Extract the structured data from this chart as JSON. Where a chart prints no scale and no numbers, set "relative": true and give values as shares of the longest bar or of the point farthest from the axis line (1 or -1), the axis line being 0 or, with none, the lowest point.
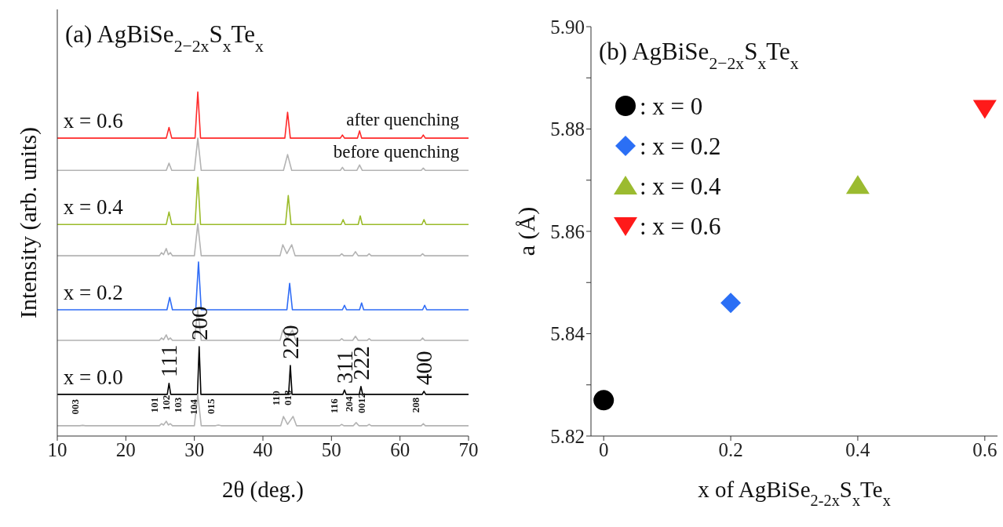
{
  "chart_data": [
    {
      "type": "line",
      "title": "(a) AgBiSe$_{2−2x}$S$_{x}$Te$_{x}$",
      "xlabel": "2θ (deg.)",
      "ylabel": "Intensity (arb. units)",
      "relative": true,
      "xlim": [
        10,
        70
      ],
      "xticks": [
        10,
        20,
        30,
        40,
        50,
        60,
        70
      ],
      "series": [
        {
          "name": "x = 0.6",
          "color": "#ff2a2a",
          "x": [
            10,
            25.9,
            26.3,
            26.7,
            30.1,
            30.5,
            30.9,
            43.2,
            43.6,
            44.0,
            51.3,
            51.6,
            51.9,
            53.8,
            54.1,
            54.4,
            63.1,
            63.4,
            63.7,
            70
          ],
          "values": [
            0.866,
            0.866,
            0.897,
            0.866,
            0.866,
            1,
            0.866,
            0.866,
            0.941,
            0.866,
            0.866,
            0.875,
            0.866,
            0.866,
            0.887,
            0.866,
            0.866,
            0.875,
            0.866,
            0.866
          ]
        },
        {
          "color": "#b3b3b3",
          "x": [
            10,
            25.9,
            26.3,
            26.7,
            30.0,
            30.5,
            31.0,
            43.0,
            43.6,
            44.2,
            51.3,
            51.6,
            51.9,
            53.7,
            54.1,
            54.5,
            63.1,
            63.4,
            63.7,
            70
          ],
          "values": [
            0.772,
            0.772,
            0.793,
            0.772,
            0.772,
            0.866,
            0.772,
            0.772,
            0.818,
            0.772,
            0.772,
            0.781,
            0.772,
            0.772,
            0.788,
            0.772,
            0.772,
            0.779,
            0.772,
            0.772
          ]
        },
        {
          "name": "x = 0.4",
          "color": "#9bbb2a",
          "x": [
            10,
            25.9,
            26.3,
            26.7,
            30.1,
            30.5,
            30.9,
            43.3,
            43.7,
            44.1,
            51.4,
            51.7,
            52.0,
            53.9,
            54.2,
            54.5,
            63.2,
            63.5,
            63.8,
            70
          ],
          "values": [
            0.615,
            0.615,
            0.651,
            0.615,
            0.615,
            0.752,
            0.615,
            0.615,
            0.699,
            0.615,
            0.615,
            0.629,
            0.615,
            0.615,
            0.64,
            0.615,
            0.615,
            0.629,
            0.615,
            0.615
          ]
        },
        {
          "color": "#b3b3b3",
          "x": [
            10,
            24.9,
            25.2,
            25.5,
            25.9,
            26.2,
            26.5,
            26.8,
            30.0,
            30.5,
            31.0,
            42.5,
            42.9,
            43.5,
            44.2,
            44.7,
            51.2,
            51.5,
            51.8,
            53.1,
            53.5,
            53.9,
            55.2,
            55.5,
            55.8,
            63.0,
            63.3,
            63.6,
            70
          ],
          "values": [
            0.524,
            0.524,
            0.533,
            0.527,
            0.545,
            0.527,
            0.533,
            0.524,
            0.524,
            0.617,
            0.524,
            0.524,
            0.556,
            0.53,
            0.556,
            0.524,
            0.524,
            0.53,
            0.524,
            0.524,
            0.536,
            0.524,
            0.524,
            0.53,
            0.524,
            0.524,
            0.53,
            0.524,
            0.524
          ]
        },
        {
          "name": "x = 0.2",
          "color": "#2f6cf6",
          "x": [
            10,
            26.0,
            26.4,
            26.8,
            30.2,
            30.6,
            31.0,
            43.5,
            43.9,
            44.3,
            51.6,
            51.9,
            52.2,
            54.1,
            54.4,
            54.7,
            63.3,
            63.6,
            63.9,
            70
          ],
          "values": [
            0.367,
            0.367,
            0.403,
            0.367,
            0.367,
            0.506,
            0.367,
            0.367,
            0.444,
            0.367,
            0.367,
            0.38,
            0.367,
            0.367,
            0.387,
            0.367,
            0.367,
            0.38,
            0.367,
            0.367
          ]
        },
        {
          "color": "#b3b3b3",
          "x": [
            10,
            24.9,
            25.2,
            25.5,
            25.9,
            26.2,
            26.5,
            26.8,
            30.0,
            30.5,
            31.0,
            42.5,
            42.9,
            43.5,
            44.3,
            44.8,
            51.2,
            51.5,
            51.8,
            53.1,
            53.5,
            53.9,
            55.2,
            55.5,
            55.8,
            63.0,
            63.3,
            63.6,
            70
          ],
          "values": [
            0.278,
            0.278,
            0.285,
            0.28,
            0.294,
            0.28,
            0.285,
            0.278,
            0.278,
            0.367,
            0.278,
            0.278,
            0.308,
            0.282,
            0.308,
            0.278,
            0.278,
            0.283,
            0.278,
            0.278,
            0.29,
            0.278,
            0.278,
            0.283,
            0.278,
            0.278,
            0.285,
            0.278,
            0.278
          ]
        },
        {
          "name": "x = 0.0",
          "color": "#000000",
          "x": [
            10,
            26.05,
            26.3,
            26.55,
            30.45,
            30.7,
            30.95,
            43.75,
            44.0,
            44.25,
            51.65,
            51.9,
            52.15,
            54.05,
            54.3,
            54.55,
            63.25,
            63.5,
            63.75,
            70
          ],
          "values": [
            0.121,
            0.121,
            0.153,
            0.121,
            0.121,
            0.26,
            0.121,
            0.121,
            0.205,
            0.121,
            0.121,
            0.134,
            0.121,
            0.121,
            0.144,
            0.121,
            0.121,
            0.13,
            0.121,
            0.121
          ]
        },
        {
          "color": "#b3b3b3",
          "x": [
            10,
            13.3,
            13.7,
            14.1,
            24.9,
            25.2,
            25.5,
            25.9,
            26.2,
            26.5,
            26.8,
            30.0,
            30.5,
            31.0,
            33.1,
            33.5,
            33.9,
            42.6,
            43.0,
            43.6,
            44.4,
            44.9,
            51.2,
            51.5,
            51.8,
            53.2,
            53.6,
            54.0,
            55.2,
            55.5,
            55.8,
            63.1,
            63.4,
            63.7,
            70
          ],
          "values": [
            0.03,
            0.03,
            0.031,
            0.03,
            0.03,
            0.036,
            0.032,
            0.043,
            0.032,
            0.036,
            0.03,
            0.03,
            0.121,
            0.03,
            0.03,
            0.032,
            0.03,
            0.03,
            0.057,
            0.034,
            0.057,
            0.03,
            0.03,
            0.034,
            0.03,
            0.03,
            0.039,
            0.03,
            0.03,
            0.034,
            0.03,
            0.03,
            0.036,
            0.03,
            0.03
          ]
        }
      ],
      "annotations": [
        "after quenching",
        "before quenching",
        {
          "text": "111",
          "x": 26.3,
          "y": 0.153
        },
        {
          "text": "200",
          "x": 30.7,
          "y": 0.26
        },
        {
          "text": "220",
          "x": 44.0,
          "y": 0.205
        },
        {
          "text": "311",
          "x": 51.9,
          "y": 0.134
        },
        {
          "text": "222",
          "x": 54.3,
          "y": 0.144
        },
        {
          "text": "400",
          "x": 63.5,
          "y": 0.13
        },
        {
          "text": "003",
          "x": 13.7,
          "y": 0.031
        },
        {
          "text": "101",
          "x": 25.2,
          "y": 0.036
        },
        {
          "text": "102",
          "x": 25.9,
          "y": 0.043
        },
        {
          "text": "103",
          "x": 26.5,
          "y": 0.036
        },
        {
          "text": "104",
          "x": 31.0,
          "y": 0.03
        },
        {
          "text": "015",
          "x": 33.5,
          "y": 0.032
        },
        {
          "text": "110",
          "x": 43.0,
          "y": 0.057
        },
        {
          "text": "018",
          "x": 44.4,
          "y": 0.057
        },
        {
          "text": "116",
          "x": 51.5,
          "y": 0.034
        },
        {
          "text": "204",
          "x": 53.6,
          "y": 0.039
        },
        {
          "text": "0012",
          "x": 55.5,
          "y": 0.034
        },
        {
          "text": "208",
          "x": 63.4,
          "y": 0.036
        }
      ]
    },
    {
      "type": "scatter",
      "title": "(b) AgBiSe$_{2−2x}$S$_{x}$Te$_{x}$",
      "xlabel": "x of AgBiSe$_{2-2x}$S$_{x}$Te$_{x}$",
      "ylabel": "a (Å)",
      "xlim": [
        -0.02,
        0.62
      ],
      "xticks": [
        0,
        0.2,
        0.4,
        0.6
      ],
      "ylim": [
        5.82,
        5.9
      ],
      "yticks": [
        5.82,
        {
          "value": 5.83,
          "label": null
        },
        5.84,
        {
          "value": 5.85,
          "label": null
        },
        5.86,
        {
          "value": 5.87,
          "label": null
        },
        5.88,
        {
          "value": 5.89,
          "label": null
        },
        {
          "value": 5.9,
          "label": "5.90"
        }
      ],
      "legend": "top left",
      "series": [
        {
          "name": ": x = 0",
          "color": "#000000",
          "marker": "circle",
          "x": [
            0
          ],
          "values": [
            5.827
          ]
        },
        {
          "name": ": x = 0.2",
          "color": "#2b6ff5",
          "marker": "diamond",
          "x": [
            0.2
          ],
          "values": [
            5.846
          ]
        },
        {
          "name": ": x = 0.4",
          "color": "#9bbb30",
          "marker": "triangle",
          "x": [
            0.4
          ],
          "values": [
            5.869
          ]
        },
        {
          "name": ": x = 0.6",
          "color": "#ff1a1a",
          "marker": "triangle-down",
          "x": [
            0.6
          ],
          "values": [
            5.884
          ]
        }
      ]
    }
  ]
}
